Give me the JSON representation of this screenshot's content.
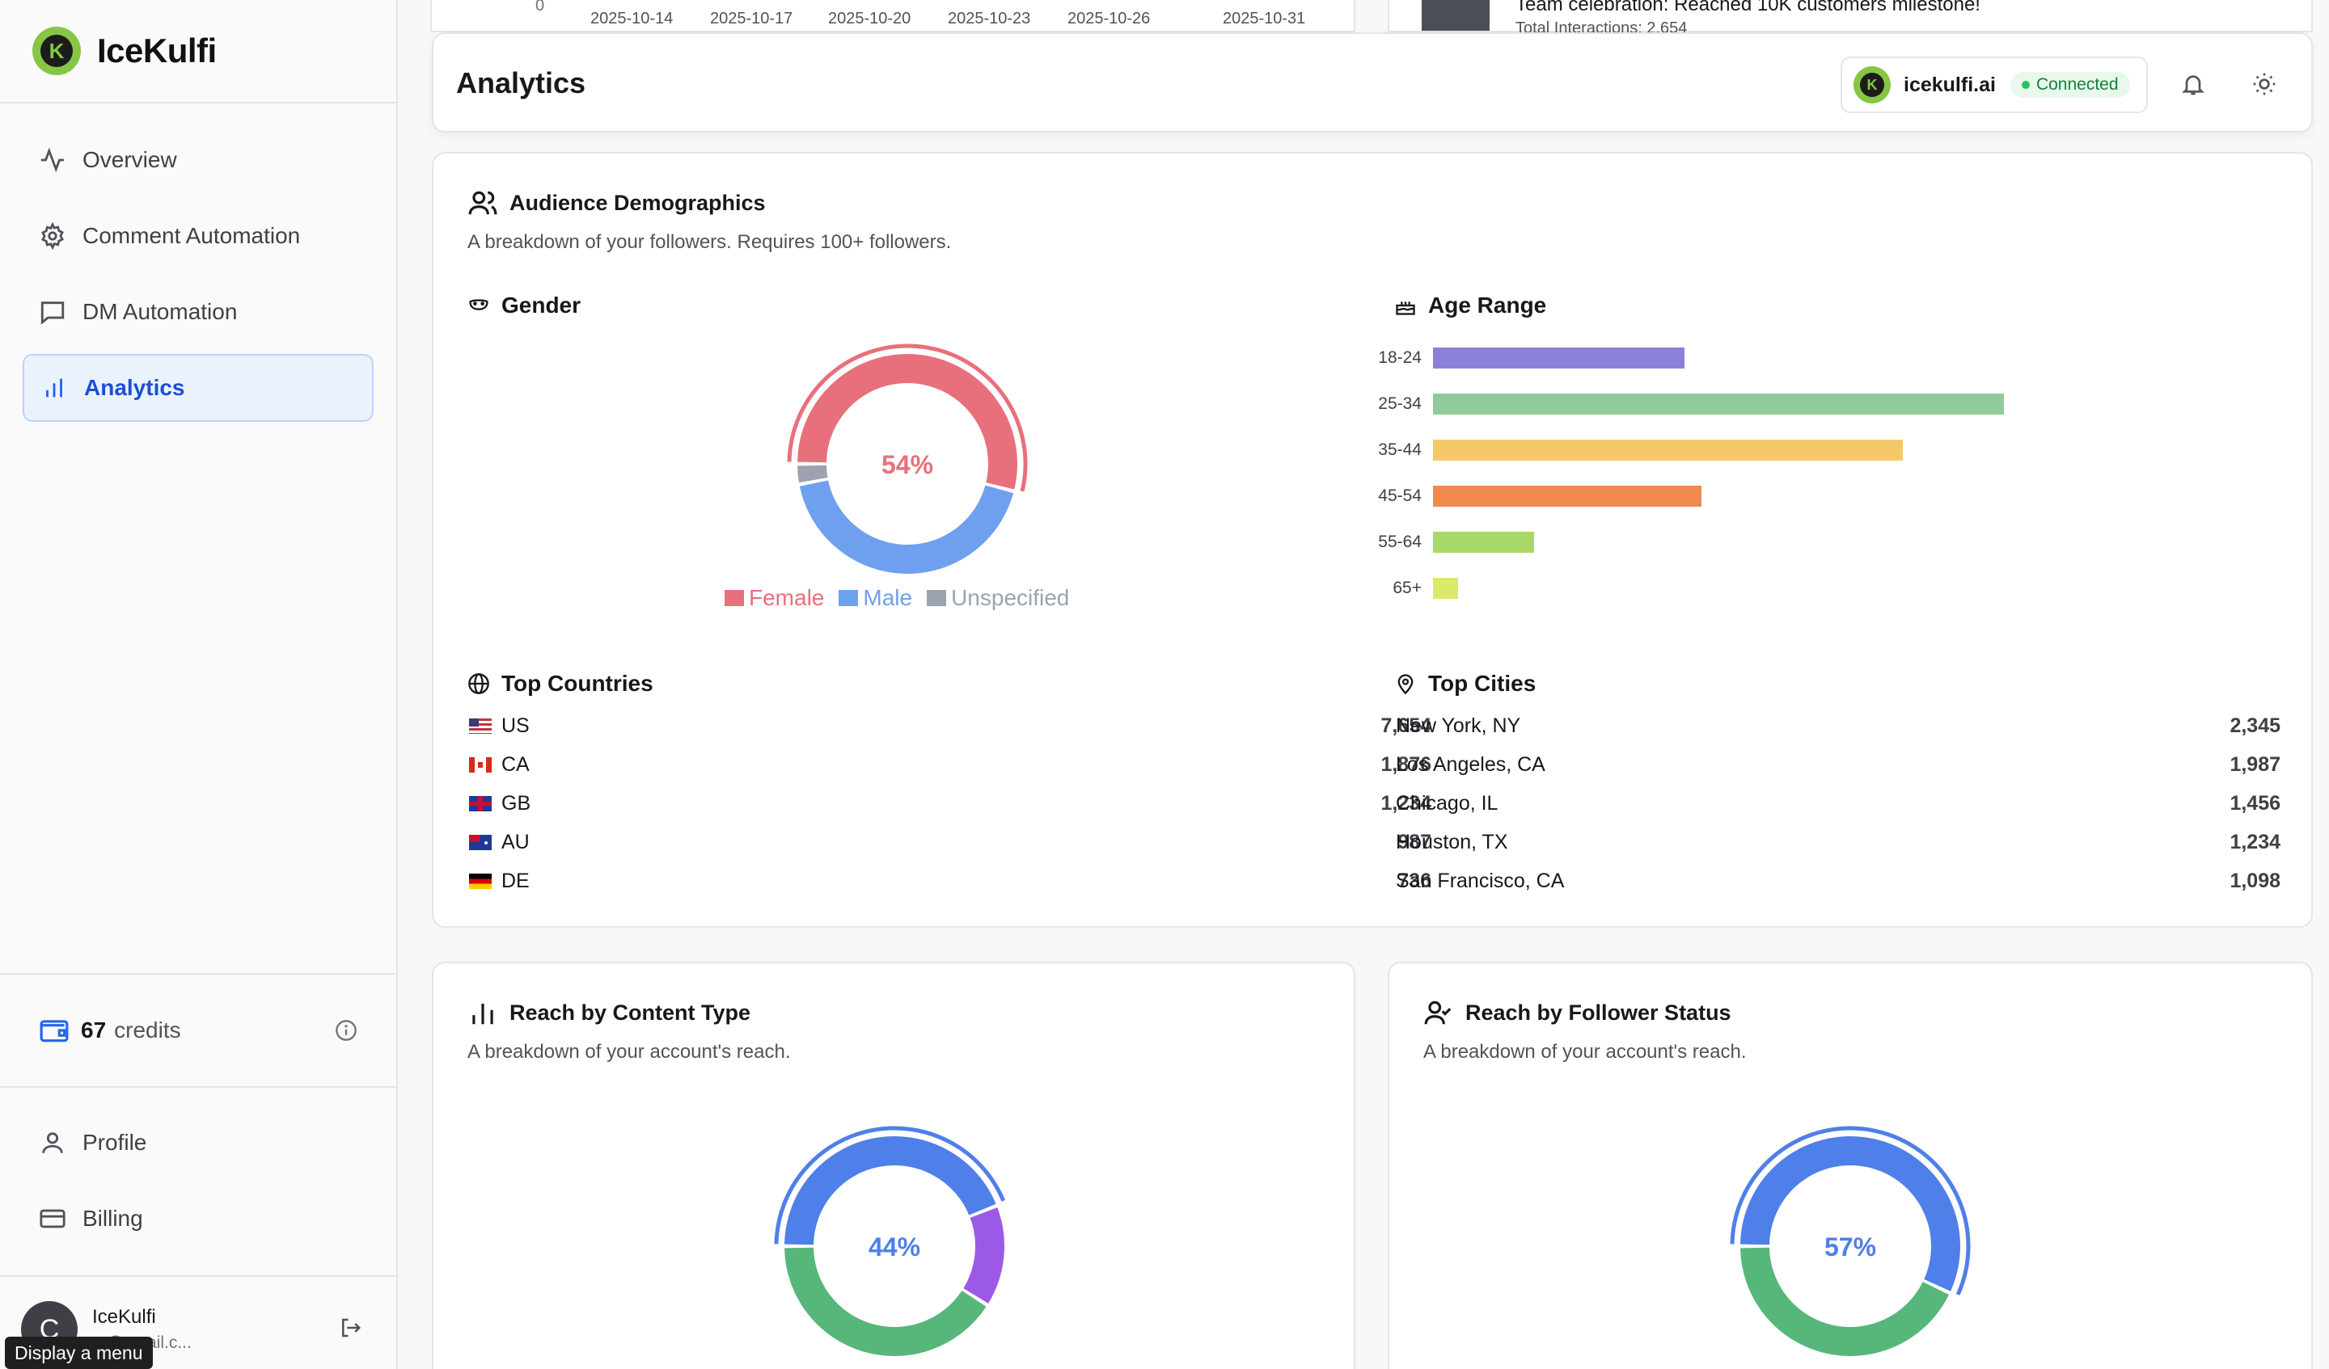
{
  "brand": {
    "name": "IceKulfi",
    "logo_letter": "K"
  },
  "sidebar": {
    "items": [
      {
        "label": "Overview",
        "icon": "activity-icon"
      },
      {
        "label": "Comment Automation",
        "icon": "gear-icon"
      },
      {
        "label": "DM Automation",
        "icon": "message-icon"
      },
      {
        "label": "Analytics",
        "icon": "bar-chart-icon",
        "active": true
      }
    ],
    "credits": {
      "count": "67",
      "label": "credits"
    },
    "lower_items": [
      {
        "label": "Profile",
        "icon": "user-icon"
      },
      {
        "label": "Billing",
        "icon": "card-icon"
      }
    ],
    "user": {
      "initial": "C",
      "name": "IceKulfi",
      "email": "...@gmail.c..."
    },
    "tooltip": "Display a menu"
  },
  "background": {
    "chart_zero": "0",
    "chart_ticks": [
      "2025-10-14",
      "2025-10-17",
      "2025-10-20",
      "2025-10-23",
      "2025-10-26",
      "2025-10-31"
    ],
    "post_title": "Team celebration: Reached 10K customers milestone!",
    "post_interactions": "Total Interactions: 2,654"
  },
  "header": {
    "title": "Analytics",
    "account": {
      "name": "icekulfi.ai",
      "status": "Connected"
    }
  },
  "demographics": {
    "title": "Audience Demographics",
    "description": "A breakdown of your followers. Requires 100+ followers.",
    "gender": {
      "title": "Gender",
      "center_label": "54%",
      "legend": [
        {
          "name": "Female",
          "color": "#e8707c"
        },
        {
          "name": "Male",
          "color": "#6fa0ef"
        },
        {
          "name": "Unspecified",
          "color": "#9ca3af"
        }
      ]
    },
    "age": {
      "title": "Age Range"
    },
    "countries": {
      "title": "Top Countries",
      "rows": [
        {
          "name": "US",
          "value": "7,654"
        },
        {
          "name": "CA",
          "value": "1,876"
        },
        {
          "name": "GB",
          "value": "1,234"
        },
        {
          "name": "AU",
          "value": "987"
        },
        {
          "name": "DE",
          "value": "736"
        }
      ]
    },
    "cities": {
      "title": "Top Cities",
      "rows": [
        {
          "name": "New York, NY",
          "value": "2,345"
        },
        {
          "name": "Los Angeles, CA",
          "value": "1,987"
        },
        {
          "name": "Chicago, IL",
          "value": "1,456"
        },
        {
          "name": "Houston, TX",
          "value": "1,234"
        },
        {
          "name": "San Francisco, CA",
          "value": "1,098"
        }
      ]
    }
  },
  "reach_content": {
    "title": "Reach by Content Type",
    "description": "A breakdown of your account's reach.",
    "center_label": "44%"
  },
  "reach_follower": {
    "title": "Reach by Follower Status",
    "description": "A breakdown of your account's reach.",
    "center_label": "57%"
  },
  "chart_data": [
    {
      "type": "pie",
      "title": "Gender",
      "categories": [
        "Female",
        "Male",
        "Unspecified"
      ],
      "values": [
        54,
        43,
        3
      ],
      "colors": [
        "#e8707c",
        "#6fa0ef",
        "#9ca3af"
      ]
    },
    {
      "type": "bar",
      "title": "Age Range",
      "orientation": "horizontal",
      "categories": [
        "18-24",
        "25-34",
        "35-44",
        "45-54",
        "55-64",
        "65+"
      ],
      "values": [
        15,
        34,
        28,
        16,
        6,
        1.5
      ],
      "colors": [
        "#8b80d8",
        "#8fcb9b",
        "#f5c96a",
        "#ef8a4f",
        "#a8d86a",
        "#dbe96a"
      ]
    },
    {
      "type": "pie",
      "title": "Reach by Content Type",
      "categories": [
        "",
        "",
        ""
      ],
      "values": [
        44,
        15,
        41
      ],
      "colors": [
        "#4f7fe8",
        "#9c59e8",
        "#57b77a"
      ]
    },
    {
      "type": "pie",
      "title": "Reach by Follower Status",
      "categories": [
        "",
        ""
      ],
      "values": [
        57,
        43
      ],
      "colors": [
        "#4f7fe8",
        "#57b77a"
      ]
    }
  ]
}
